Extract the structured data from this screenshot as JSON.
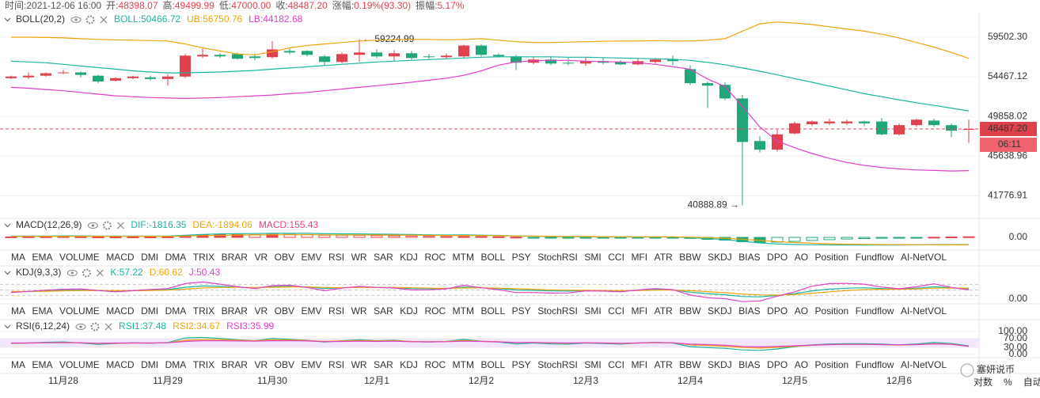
{
  "info": [
    {
      "label": "时间:",
      "value": "2021-12-06 16:00"
    },
    {
      "label": "开:",
      "value": "48398.07"
    },
    {
      "label": "高:",
      "value": "49499.99"
    },
    {
      "label": "低:",
      "value": "47000.00"
    },
    {
      "label": "收:",
      "value": "48487.20"
    },
    {
      "label": "涨幅:",
      "value": "0.19%(93.30)"
    },
    {
      "label": "振幅:",
      "value": "5.17%"
    }
  ],
  "chart_data": [
    {
      "type": "candlestick",
      "title": "BOLL(20,2)",
      "log": true,
      "up_color": "#e0424d",
      "down_color": "#20a779",
      "categories": [
        null,
        null,
        null,
        "11月28",
        null,
        null,
        null,
        null,
        null,
        "11月29",
        null,
        null,
        null,
        null,
        null,
        "11月30",
        null,
        null,
        null,
        null,
        null,
        "12月1",
        null,
        null,
        null,
        null,
        null,
        "12月2",
        null,
        null,
        null,
        null,
        null,
        "12月3",
        null,
        null,
        null,
        null,
        null,
        "12月4",
        null,
        null,
        null,
        null,
        null,
        "12月5",
        null,
        null,
        null,
        null,
        null,
        "12月6",
        null,
        null,
        null,
        null
      ],
      "open": [
        54300,
        54400,
        54600,
        54900,
        55000,
        54600,
        54000,
        54300,
        54400,
        54200,
        54500,
        57000,
        57200,
        57300,
        57000,
        56900,
        57700,
        57700,
        57000,
        56300,
        57200,
        57500,
        57000,
        57400,
        57000,
        56900,
        57000,
        58400,
        57200,
        57000,
        56200,
        56600,
        56200,
        56100,
        56400,
        56300,
        56000,
        56300,
        56600,
        55400,
        53700,
        53500,
        51900,
        47200,
        46300,
        48000,
        49000,
        49100,
        49100,
        49300,
        49300,
        47900,
        48900,
        49400,
        48900,
        48398.07
      ],
      "high": [
        54600,
        55000,
        55000,
        55300,
        55100,
        54700,
        54400,
        54600,
        54600,
        54800,
        57300,
        58000,
        57400,
        57500,
        57400,
        59000,
        58000,
        57800,
        57200,
        57500,
        59224.99,
        57900,
        57800,
        57700,
        57300,
        57400,
        58500,
        58600,
        57400,
        57200,
        56900,
        56900,
        56800,
        56900,
        56800,
        56500,
        56700,
        56800,
        57100,
        55900,
        53900,
        53800,
        52300,
        47700,
        48400,
        49300,
        49400,
        49600,
        49500,
        49400,
        49700,
        49100,
        49600,
        49600,
        49100,
        49499.99
      ],
      "low": [
        54200,
        54200,
        54500,
        54800,
        54400,
        53700,
        53900,
        54200,
        54000,
        53400,
        54300,
        56800,
        56800,
        56600,
        56500,
        56700,
        57300,
        57000,
        55800,
        56100,
        56300,
        56800,
        56400,
        56600,
        56700,
        56700,
        56800,
        57000,
        56900,
        55300,
        56000,
        55900,
        55900,
        55800,
        56000,
        55900,
        55900,
        56100,
        55900,
        53500,
        50800,
        51700,
        40888.89,
        46000,
        46100,
        47900,
        48800,
        48900,
        48900,
        48800,
        47800,
        47800,
        48700,
        48700,
        47600,
        47000
      ],
      "close": [
        54500,
        54600,
        54900,
        55000,
        54700,
        53900,
        54300,
        54500,
        54200,
        54500,
        57100,
        57200,
        57000,
        56700,
        56800,
        57900,
        57500,
        57200,
        56300,
        57300,
        57500,
        57000,
        57400,
        56800,
        56900,
        57100,
        58400,
        57200,
        57000,
        56200,
        56600,
        56100,
        56100,
        56400,
        56200,
        56000,
        56400,
        56600,
        56400,
        53700,
        53400,
        51900,
        47100,
        46300,
        47900,
        49100,
        49300,
        49300,
        49300,
        49100,
        47900,
        48900,
        49500,
        48900,
        48300,
        48487.2
      ],
      "series": [
        {
          "name": "BOLL:",
          "color": "#19b3a0",
          "values": [
            56400,
            56300,
            56200,
            56000,
            55800,
            55600,
            55400,
            55200,
            55050,
            54950,
            54950,
            55000,
            55050,
            55150,
            55250,
            55400,
            55550,
            55700,
            55850,
            56000,
            56150,
            56300,
            56400,
            56500,
            56600,
            56700,
            56800,
            56900,
            56950,
            56950,
            56950,
            56950,
            56900,
            56900,
            56850,
            56800,
            56750,
            56700,
            56650,
            56500,
            56250,
            55950,
            55550,
            55150,
            54700,
            54250,
            53800,
            53350,
            52900,
            52450,
            52100,
            51750,
            51400,
            51100,
            50800,
            50466.72
          ]
        },
        {
          "name": "UB:",
          "color": "#f0a30a",
          "values": [
            59500,
            59500,
            59450,
            59400,
            59300,
            59200,
            59150,
            59100,
            59050,
            59000,
            58600,
            58100,
            57700,
            57300,
            57200,
            57600,
            58100,
            58400,
            58600,
            58800,
            59000,
            59100,
            59150,
            59200,
            59200,
            59150,
            59200,
            59300,
            59100,
            58900,
            58800,
            58800,
            58850,
            58900,
            58950,
            59000,
            59000,
            59050,
            59000,
            59000,
            59100,
            59300,
            60300,
            61300,
            61550,
            61400,
            61200,
            60900,
            60600,
            60300,
            59900,
            59400,
            58800,
            58200,
            57500,
            56750.76
          ]
        },
        {
          "name": "LB:",
          "color": "#e040c8",
          "values": [
            53200,
            53100,
            52950,
            52800,
            52600,
            52400,
            52200,
            52100,
            52000,
            51950,
            51900,
            51950,
            52000,
            52100,
            52200,
            52300,
            52450,
            52600,
            52800,
            53000,
            53200,
            53400,
            53600,
            53800,
            54050,
            54300,
            54650,
            55200,
            55900,
            56300,
            56450,
            56500,
            56500,
            56400,
            56350,
            56300,
            56200,
            56000,
            55700,
            55400,
            54200,
            53300,
            51000,
            48700,
            47200,
            46500,
            45900,
            45400,
            45000,
            44700,
            44500,
            44350,
            44250,
            44200,
            44150,
            44182.68
          ]
        }
      ],
      "ylim": [
        40000,
        62400
      ],
      "yticks": [
        {
          "value": 59502.3,
          "label": "59502.30"
        },
        54467.12,
        49858.02,
        45638.96,
        41776.91
      ],
      "high_label": "← 59224.99",
      "low_label": "40888.89 →",
      "last_price": {
        "value": 48487.2,
        "label": "48487.20"
      },
      "countdown": "06:11"
    },
    {
      "type": "macd",
      "title": "MACD(12,26,9)",
      "active_tab": 3,
      "series": [
        {
          "name": "DIF:",
          "color": "#19b3a0",
          "values": [
            300,
            320,
            350,
            380,
            370,
            330,
            310,
            320,
            320,
            340,
            550,
            750,
            880,
            950,
            960,
            1020,
            1030,
            1010,
            920,
            900,
            880,
            830,
            790,
            720,
            650,
            600,
            610,
            560,
            500,
            390,
            300,
            240,
            190,
            170,
            140,
            110,
            110,
            120,
            100,
            -60,
            -300,
            -560,
            -1000,
            -1400,
            -1650,
            -1800,
            -1860,
            -1900,
            -1920,
            -1930,
            -1930,
            -1920,
            -1880,
            -1830,
            -1830,
            -1816.35
          ]
        },
        {
          "name": "DEA:",
          "color": "#f0a30a",
          "values": [
            240,
            250,
            270,
            290,
            295,
            280,
            265,
            265,
            270,
            280,
            350,
            450,
            530,
            590,
            620,
            640,
            660,
            660,
            640,
            630,
            620,
            605,
            590,
            555,
            520,
            490,
            490,
            460,
            425,
            360,
            310,
            270,
            235,
            210,
            185,
            160,
            150,
            150,
            135,
            65,
            -50,
            -210,
            -450,
            -775,
            -1050,
            -1300,
            -1470,
            -1610,
            -1710,
            -1780,
            -1820,
            -1845,
            -1850,
            -1850,
            -1885,
            -1894.06
          ]
        }
      ],
      "histogram": {
        "name": "MACD:",
        "color": "#e8457a",
        "up_color": "#e0424d",
        "down_color": "#20a779",
        "values": [
          120,
          140,
          160,
          180,
          150,
          100,
          90,
          110,
          100,
          120,
          400,
          600,
          700,
          720,
          680,
          760,
          740,
          700,
          560,
          540,
          520,
          450,
          400,
          330,
          260,
          220,
          240,
          200,
          150,
          60,
          -20,
          -60,
          -90,
          -80,
          -90,
          -100,
          -80,
          -60,
          -70,
          -250,
          -500,
          -700,
          -1100,
          -1250,
          -1200,
          -1000,
          -780,
          -580,
          -420,
          -300,
          -220,
          -150,
          -60,
          40,
          110,
          155.43
        ]
      },
      "ylim": [
        -2400,
        2400
      ],
      "yticks": [
        {
          "value": 0,
          "label": "0.00"
        }
      ]
    },
    {
      "type": "line",
      "title": "KDJ(9,3,3)",
      "active_tab": 14,
      "series": [
        {
          "name": "K:",
          "color": "#19b3a0",
          "values": [
            40,
            42,
            45,
            48,
            50,
            47,
            44,
            46,
            49,
            52,
            65,
            72,
            70,
            66,
            62,
            68,
            70,
            66,
            58,
            62,
            66,
            64,
            63,
            58,
            57,
            58,
            66,
            62,
            57,
            50,
            48,
            45,
            44,
            47,
            46,
            44,
            48,
            52,
            50,
            38,
            30,
            24,
            14,
            12,
            20,
            30,
            45,
            55,
            60,
            62,
            58,
            55,
            60,
            68,
            62,
            57.22
          ]
        },
        {
          "name": "D:",
          "color": "#f0a30a",
          "values": [
            42,
            42,
            43,
            45,
            47,
            47,
            46,
            46,
            47,
            49,
            55,
            61,
            64,
            65,
            64,
            65,
            67,
            67,
            64,
            63,
            64,
            64,
            64,
            62,
            60,
            59,
            61,
            62,
            60,
            57,
            54,
            51,
            49,
            48,
            47,
            46,
            47,
            49,
            49,
            46,
            41,
            35,
            28,
            23,
            22,
            25,
            32,
            40,
            47,
            52,
            54,
            54,
            56,
            60,
            61,
            60.62
          ]
        },
        {
          "name": "J:",
          "color": "#e040c8",
          "values": [
            36,
            42,
            49,
            54,
            56,
            47,
            40,
            46,
            53,
            58,
            85,
            94,
            82,
            68,
            58,
            74,
            76,
            64,
            46,
            60,
            70,
            64,
            61,
            50,
            51,
            56,
            76,
            62,
            51,
            36,
            36,
            33,
            34,
            45,
            44,
            40,
            50,
            58,
            52,
            22,
            8,
            2,
            -14,
            -10,
            16,
            40,
            71,
            85,
            86,
            82,
            66,
            57,
            68,
            84,
            64,
            50.43
          ]
        }
      ],
      "guide_lines": [
        20,
        50,
        80
      ],
      "ylim": [
        0,
        100
      ],
      "yticks": [
        {
          "value": 0,
          "label": "0.00"
        }
      ]
    },
    {
      "type": "line",
      "title": "RSI(6,12,24)",
      "active_tab": 11,
      "series": [
        {
          "name": "RSI1:",
          "color": "#19b3a0",
          "values": [
            48,
            50,
            53,
            55,
            50,
            44,
            48,
            51,
            49,
            52,
            72,
            74,
            70,
            64,
            60,
            70,
            66,
            62,
            54,
            60,
            64,
            60,
            62,
            56,
            55,
            57,
            66,
            58,
            54,
            46,
            50,
            46,
            45,
            50,
            48,
            45,
            50,
            53,
            50,
            34,
            30,
            27,
            20,
            18,
            24,
            34,
            42,
            46,
            47,
            47,
            45,
            42,
            46,
            52,
            48,
            37.48
          ]
        },
        {
          "name": "RSI2:",
          "color": "#f0a30a",
          "values": [
            49,
            50,
            51,
            52,
            51,
            48,
            49,
            50,
            50,
            51,
            62,
            65,
            65,
            62,
            60,
            64,
            63,
            61,
            57,
            59,
            61,
            59,
            60,
            57,
            56,
            57,
            61,
            58,
            56,
            51,
            52,
            50,
            49,
            51,
            50,
            48,
            50,
            52,
            51,
            42,
            39,
            36,
            30,
            28,
            31,
            36,
            40,
            43,
            44,
            44,
            43,
            41,
            43,
            47,
            45,
            34.67
          ]
        },
        {
          "name": "RSI3:",
          "color": "#e040c8",
          "values": [
            50,
            50,
            51,
            51,
            51,
            49,
            50,
            50,
            50,
            51,
            57,
            60,
            60,
            59,
            58,
            60,
            60,
            59,
            56,
            57,
            58,
            57,
            58,
            56,
            55,
            56,
            58,
            57,
            55,
            52,
            52,
            51,
            50,
            51,
            50,
            49,
            50,
            51,
            51,
            45,
            43,
            40,
            35,
            33,
            35,
            38,
            41,
            43,
            44,
            44,
            43,
            42,
            43,
            46,
            44,
            35.99
          ]
        }
      ],
      "band": [
        30,
        70
      ],
      "ylim": [
        0,
        100
      ],
      "yticks": [
        {
          "value": 100,
          "label": "100.00"
        },
        {
          "value": 70,
          "label": "70.00"
        },
        {
          "value": 30,
          "label": "30.00"
        },
        {
          "value": 0,
          "label": "0.00"
        }
      ]
    }
  ],
  "indicator_tabs": [
    "MA",
    "EMA",
    "VOLUME",
    "MACD",
    "DMI",
    "DMA",
    "TRIX",
    "BRAR",
    "VR",
    "OBV",
    "EMV",
    "RSI",
    "WR",
    "SAR",
    "KDJ",
    "ROC",
    "MTM",
    "BOLL",
    "PSY",
    "StochRSI",
    "SMI",
    "CCI",
    "MFI",
    "ATR",
    "BBW",
    "SKDJ",
    "BIAS",
    "DPO",
    "AO",
    "Position",
    "Fundflow",
    "AI-NetVOL"
  ],
  "scale_buttons": [
    "对数",
    "%",
    "自动"
  ],
  "watermark": "塞妍说币"
}
